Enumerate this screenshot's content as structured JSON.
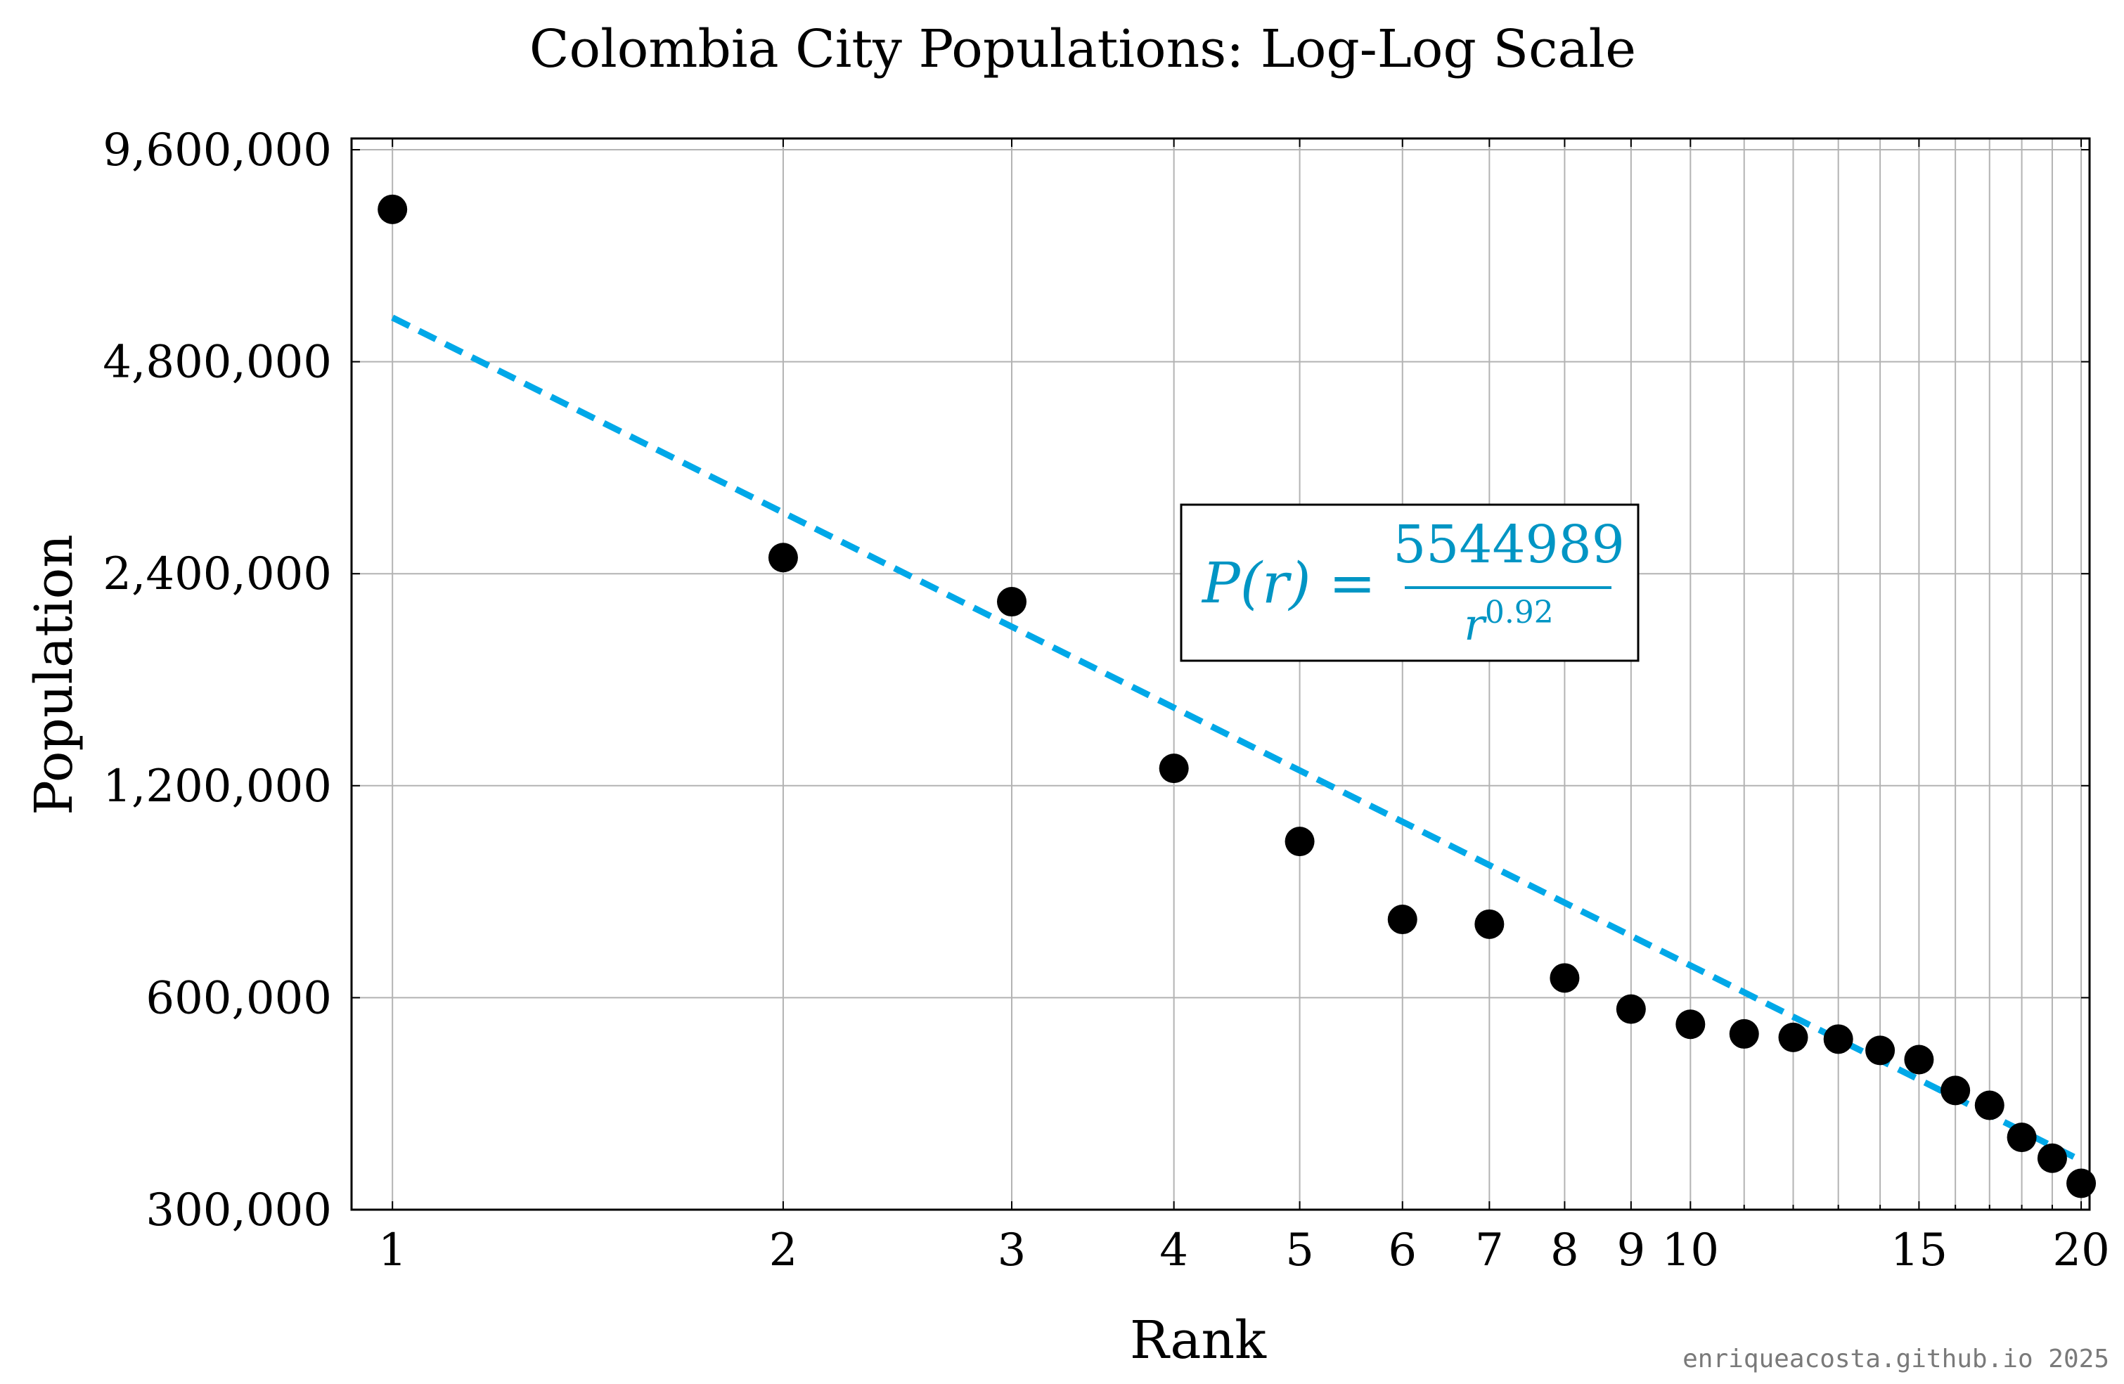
{
  "chart_data": {
    "type": "scatter",
    "title": "Colombia City Populations: Log-Log Scale",
    "xlabel": "Rank",
    "ylabel": "Population",
    "x_scale": "log",
    "y_scale": "log",
    "xlim": [
      0.93,
      20.3
    ],
    "ylim": [
      300000,
      9960000
    ],
    "x_ticks": [
      1,
      2,
      3,
      4,
      5,
      6,
      7,
      8,
      9,
      10,
      15,
      20
    ],
    "x_tick_labels": [
      "1",
      "2",
      "3",
      "4",
      "5",
      "6",
      "7",
      "8",
      "9",
      "10",
      "15",
      "20"
    ],
    "x_minor_grid": [
      11,
      12,
      13,
      14,
      16,
      17,
      18,
      19
    ],
    "y_ticks": [
      300000,
      600000,
      1200000,
      2400000,
      4800000,
      9600000
    ],
    "y_tick_labels": [
      "300,000",
      "600,000",
      "1,200,000",
      "2,400,000",
      "4,800,000",
      "9,600,000"
    ],
    "grid": true,
    "series": [
      {
        "x": [
          1,
          2,
          3,
          4,
          5,
          6,
          7,
          8,
          9,
          10,
          11,
          12,
          13,
          14,
          15,
          16,
          17,
          18,
          19,
          20
        ],
        "y": [
          7900000,
          2530000,
          2190000,
          1270000,
          1000000,
          775000,
          763000,
          640000,
          578000,
          550000,
          533000,
          527000,
          524000,
          505000,
          490000,
          443000,
          422000,
          380000,
          355000,
          327000
        ],
        "color": "#000000"
      }
    ],
    "fit": {
      "formula_prefix": "P(r) = ",
      "numerator": "5544989",
      "base": "r",
      "exponent": "0.92",
      "coefficient": 5544989,
      "power": 0.92,
      "color": "#00a8e8",
      "label_color": "#0095c4"
    },
    "watermark": "enriqueacosta.github.io 2025"
  }
}
